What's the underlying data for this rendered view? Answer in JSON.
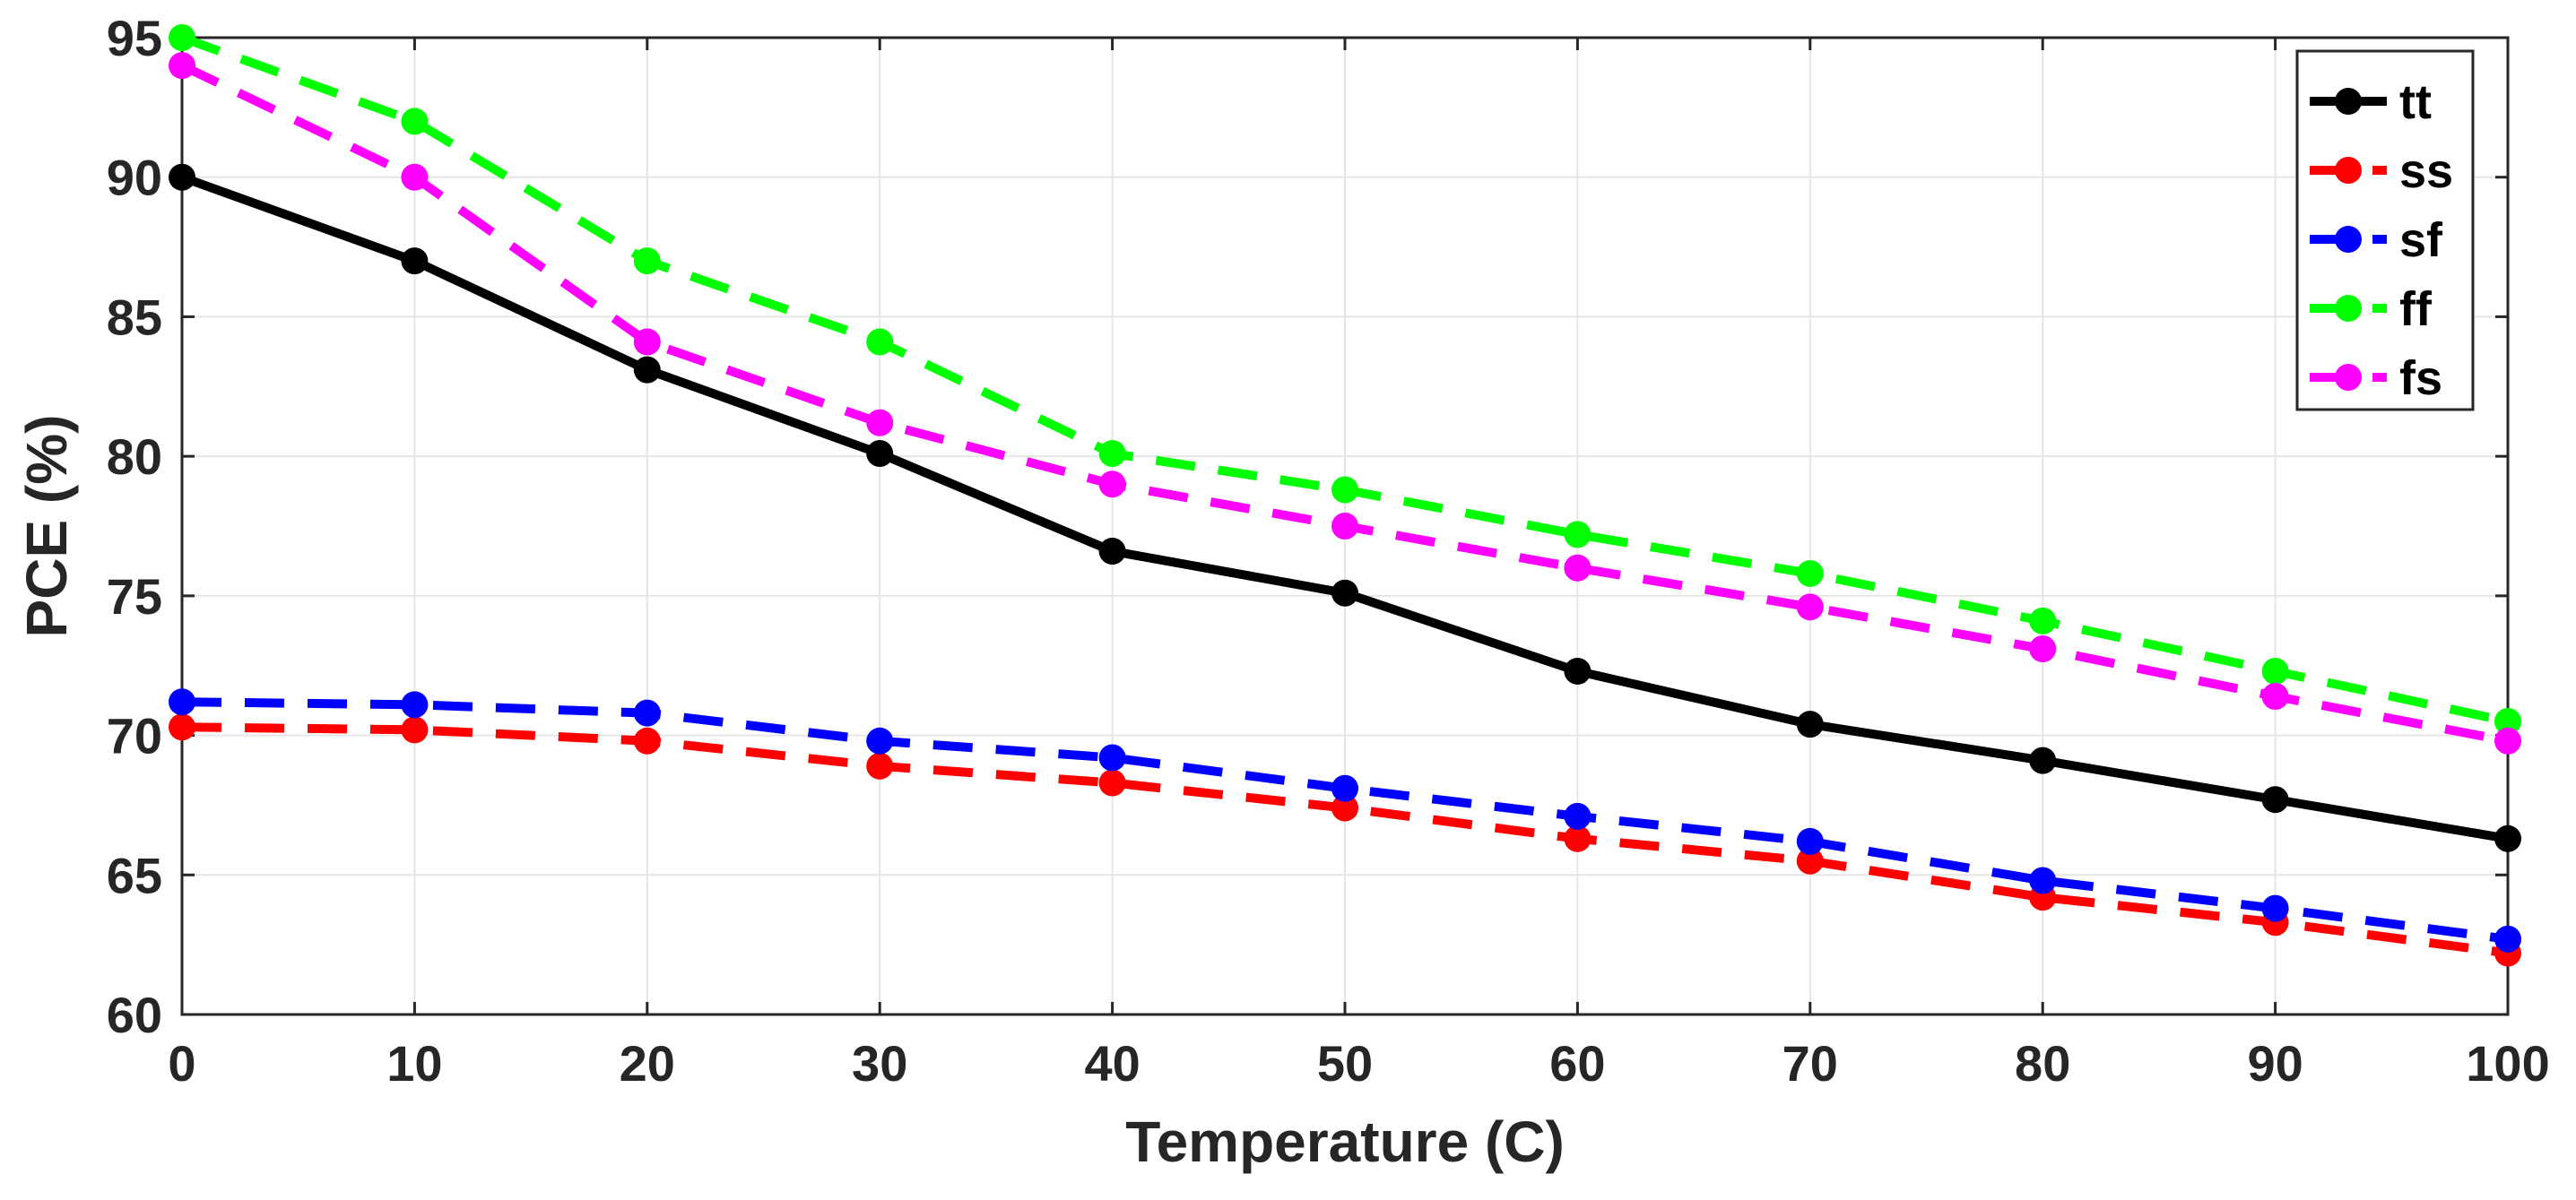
{
  "chart_data": {
    "type": "line",
    "title": "",
    "xlabel": "Temperature (C)",
    "ylabel": "PCE (%)",
    "xlim": [
      0,
      100
    ],
    "ylim": [
      60,
      95
    ],
    "x": [
      0,
      10,
      20,
      30,
      40,
      50,
      60,
      70,
      80,
      90,
      100
    ],
    "xticks": [
      0,
      10,
      20,
      30,
      40,
      50,
      60,
      70,
      80,
      90,
      100
    ],
    "yticks": [
      60,
      65,
      70,
      75,
      80,
      85,
      90,
      95
    ],
    "grid": true,
    "legend_position": "top-right",
    "series": [
      {
        "name": "tt",
        "color": "#000000",
        "style": "solid",
        "values": [
          90.0,
          87.0,
          83.1,
          80.1,
          76.6,
          75.1,
          72.3,
          70.4,
          69.1,
          67.7,
          66.3
        ]
      },
      {
        "name": "ss",
        "color": "#ff0000",
        "style": "dashed",
        "values": [
          70.3,
          70.2,
          69.8,
          68.9,
          68.3,
          67.4,
          66.3,
          65.5,
          64.2,
          63.3,
          62.2
        ]
      },
      {
        "name": "sf",
        "color": "#0000ff",
        "style": "dashed",
        "values": [
          71.2,
          71.1,
          70.8,
          69.8,
          69.2,
          68.1,
          67.1,
          66.2,
          64.8,
          63.8,
          62.7
        ]
      },
      {
        "name": "ff",
        "color": "#00ff00",
        "style": "dashed",
        "values": [
          95.0,
          92.0,
          87.0,
          84.1,
          80.1,
          78.8,
          77.2,
          75.8,
          74.1,
          72.3,
          70.5
        ]
      },
      {
        "name": "fs",
        "color": "#ff00ff",
        "style": "dashed",
        "values": [
          94.0,
          90.0,
          84.1,
          81.2,
          79.0,
          77.5,
          76.0,
          74.6,
          73.1,
          71.4,
          69.8
        ]
      }
    ]
  }
}
